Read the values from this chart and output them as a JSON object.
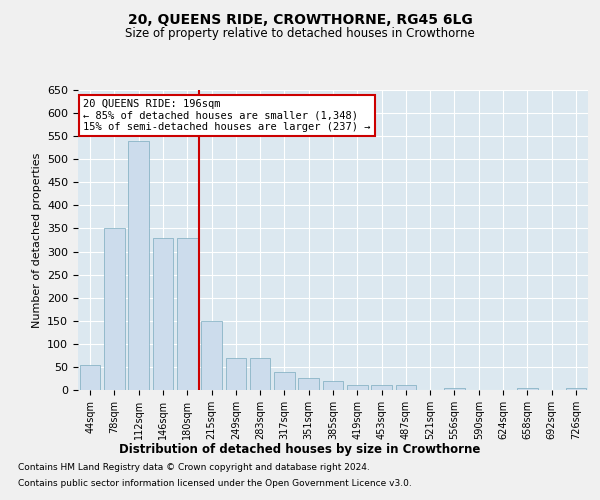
{
  "title": "20, QUEENS RIDE, CROWTHORNE, RG45 6LG",
  "subtitle": "Size of property relative to detached houses in Crowthorne",
  "xlabel": "Distribution of detached houses by size in Crowthorne",
  "ylabel": "Number of detached properties",
  "categories": [
    "44sqm",
    "78sqm",
    "112sqm",
    "146sqm",
    "180sqm",
    "215sqm",
    "249sqm",
    "283sqm",
    "317sqm",
    "351sqm",
    "385sqm",
    "419sqm",
    "453sqm",
    "487sqm",
    "521sqm",
    "556sqm",
    "590sqm",
    "624sqm",
    "658sqm",
    "692sqm",
    "726sqm"
  ],
  "values": [
    55,
    350,
    540,
    330,
    330,
    150,
    70,
    70,
    40,
    25,
    20,
    10,
    10,
    10,
    0,
    5,
    0,
    0,
    5,
    0,
    5
  ],
  "bar_color": "#ccdcec",
  "bar_edge_color": "#7aabbf",
  "background_color": "#dce8f0",
  "grid_color": "#ffffff",
  "red_line_x": 4.5,
  "annotation_text": "20 QUEENS RIDE: 196sqm\n← 85% of detached houses are smaller (1,348)\n15% of semi-detached houses are larger (237) →",
  "annotation_box_color": "#ffffff",
  "annotation_box_edge": "#cc0000",
  "red_line_color": "#cc0000",
  "ylim": [
    0,
    650
  ],
  "yticks": [
    0,
    50,
    100,
    150,
    200,
    250,
    300,
    350,
    400,
    450,
    500,
    550,
    600,
    650
  ],
  "fig_background": "#f0f0f0",
  "footnote1": "Contains HM Land Registry data © Crown copyright and database right 2024.",
  "footnote2": "Contains public sector information licensed under the Open Government Licence v3.0."
}
